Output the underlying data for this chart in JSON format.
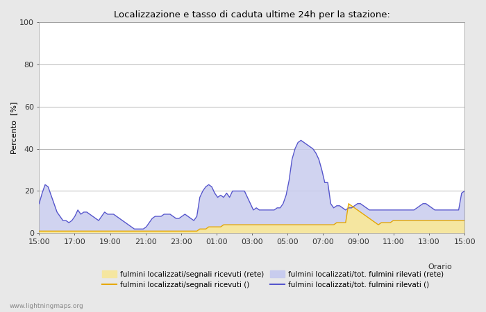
{
  "title": "Localizzazione e tasso di caduta ultime 24h per la stazione:",
  "xlabel": "Orario",
  "ylabel": "Percento  [%]",
  "ylim": [
    0,
    100
  ],
  "yticks": [
    0,
    20,
    40,
    60,
    80,
    100
  ],
  "x_labels": [
    "15:00",
    "17:00",
    "19:00",
    "21:00",
    "23:00",
    "01:00",
    "03:00",
    "05:00",
    "07:00",
    "09:00",
    "11:00",
    "13:00",
    "15:00"
  ],
  "background_color": "#e8e8e8",
  "plot_background": "#ffffff",
  "watermark": "www.lightningmaps.org",
  "legend": [
    {
      "label": "fulmini localizzati/segnali ricevuti (rete)",
      "type": "patch",
      "color": "#f5e6a0"
    },
    {
      "label": "fulmini localizzati/segnali ricevuti ()",
      "type": "line",
      "color": "#e6a800"
    },
    {
      "label": "fulmini localizzati/tot. fulmini rilevati (rete)",
      "type": "patch",
      "color": "#c8ccee"
    },
    {
      "label": "fulmini localizzati/tot. fulmini rilevati ()",
      "type": "line",
      "color": "#5555cc"
    }
  ],
  "n_points": 144,
  "orange_line": [
    1,
    1,
    1,
    1,
    1,
    1,
    1,
    1,
    1,
    1,
    1,
    1,
    1,
    1,
    1,
    1,
    1,
    1,
    1,
    1,
    1,
    1,
    1,
    1,
    1,
    1,
    1,
    1,
    1,
    1,
    1,
    1,
    1,
    1,
    1,
    1,
    1,
    1,
    1,
    1,
    1,
    1,
    1,
    1,
    1,
    1,
    1,
    1,
    1,
    1,
    1,
    1,
    1,
    1,
    2,
    2,
    2,
    3,
    3,
    3,
    3,
    3,
    4,
    4,
    4,
    4,
    4,
    4,
    4,
    4,
    4,
    4,
    4,
    4,
    4,
    4,
    4,
    4,
    4,
    4,
    4,
    4,
    4,
    4,
    4,
    4,
    4,
    4,
    4,
    4,
    4,
    4,
    4,
    4,
    4,
    4,
    4,
    4,
    4,
    4,
    5,
    5,
    5,
    5,
    14,
    13,
    12,
    11,
    10,
    9,
    8,
    7,
    6,
    5,
    4,
    5,
    5,
    5,
    5,
    6,
    6,
    6,
    6,
    6,
    6,
    6,
    6,
    6,
    6,
    6,
    6,
    6,
    6,
    6,
    6,
    6,
    6,
    6,
    6,
    6,
    6,
    6,
    6,
    6
  ],
  "blue_line": [
    14,
    19,
    23,
    22,
    18,
    14,
    10,
    8,
    6,
    6,
    5,
    6,
    8,
    11,
    9,
    10,
    10,
    9,
    8,
    7,
    6,
    8,
    10,
    9,
    9,
    9,
    8,
    7,
    6,
    5,
    4,
    3,
    2,
    2,
    2,
    2,
    3,
    5,
    7,
    8,
    8,
    8,
    9,
    9,
    9,
    8,
    7,
    7,
    8,
    9,
    8,
    7,
    6,
    8,
    17,
    20,
    22,
    23,
    22,
    19,
    17,
    18,
    17,
    19,
    17,
    20,
    20,
    20,
    20,
    20,
    17,
    14,
    11,
    12,
    11,
    11,
    11,
    11,
    11,
    11,
    12,
    12,
    14,
    18,
    25,
    35,
    40,
    43,
    44,
    43,
    42,
    41,
    40,
    38,
    35,
    30,
    24,
    24,
    14,
    12,
    13,
    13,
    12,
    11,
    12,
    12,
    13,
    14,
    14,
    13,
    12,
    11,
    11,
    11,
    11,
    11,
    11,
    11,
    11,
    11,
    11,
    11,
    11,
    11,
    11,
    11,
    11,
    12,
    13,
    14,
    14,
    13,
    12,
    11,
    11,
    11,
    11,
    11,
    11,
    11,
    11,
    11,
    19,
    20
  ]
}
